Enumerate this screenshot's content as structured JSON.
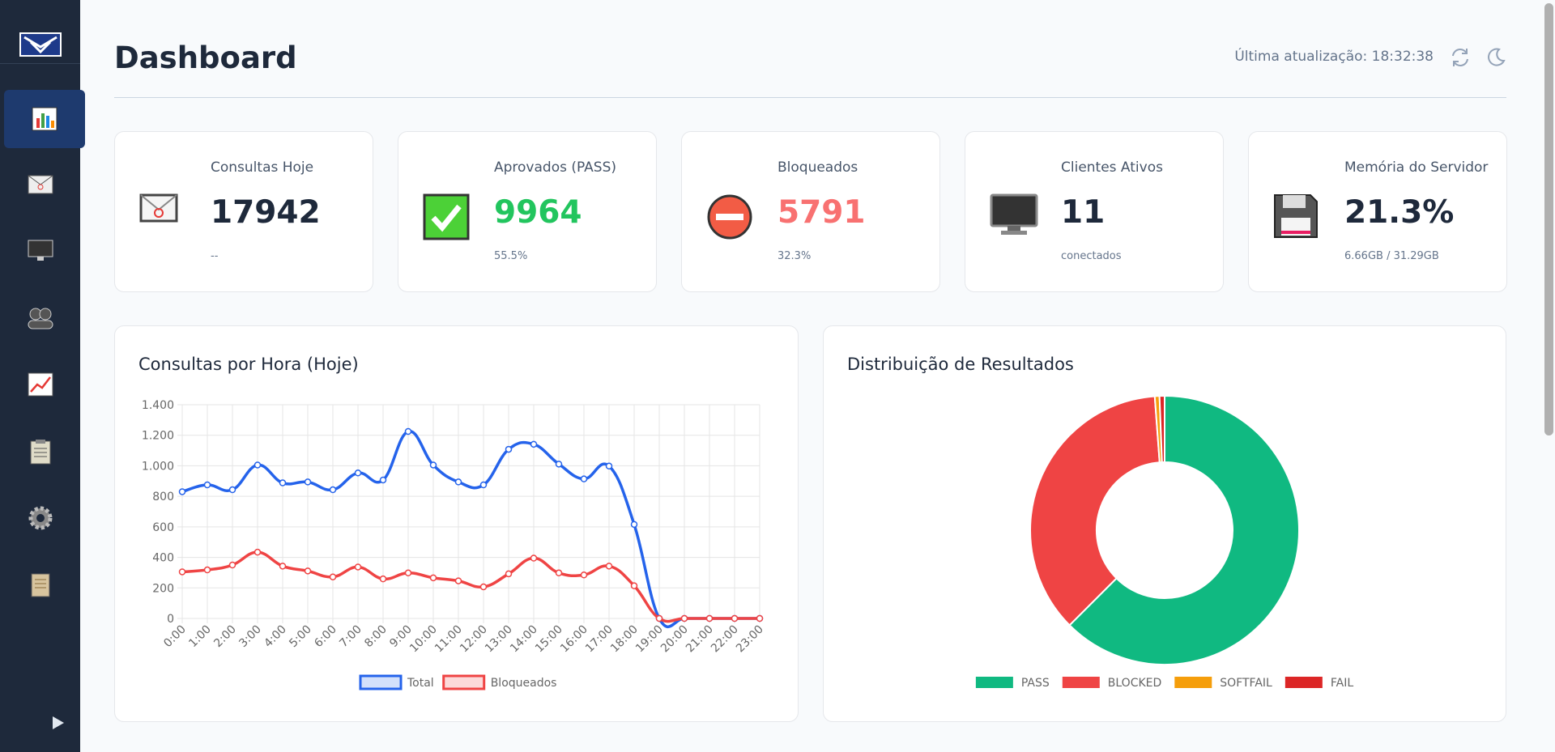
{
  "header": {
    "title": "Dashboard",
    "last_update": "Última atualização: 18:32:38"
  },
  "cards": [
    {
      "title": "Consultas Hoje",
      "value": 17942,
      "sub": "--"
    },
    {
      "title": "Aprovados (PASS)",
      "value": 9964,
      "sub": "55.5%"
    },
    {
      "title": "Bloqueados",
      "value": 5791,
      "sub": "32.3%"
    },
    {
      "title": "Clientes Ativos",
      "value": 11,
      "sub": "conectados"
    },
    {
      "title": "Memória do Servidor",
      "value": "21.3%",
      "sub": "6.66GB / 31.29GB"
    }
  ],
  "line_chart": {
    "type": "line",
    "title": "Consultas por Hora (Hoje)",
    "categories": [
      "0:00",
      "1:00",
      "2:00",
      "3:00",
      "4:00",
      "5:00",
      "6:00",
      "7:00",
      "8:00",
      "9:00",
      "10:00",
      "11:00",
      "12:00",
      "13:00",
      "14:00",
      "15:00",
      "16:00",
      "17:00",
      "18:00",
      "19:00",
      "20:00",
      "21:00",
      "22:00",
      "23:00"
    ],
    "series": [
      {
        "name": "Total",
        "color": "#2563eb",
        "values": [
          830,
          875,
          843,
          1005,
          888,
          894,
          843,
          953,
          907,
          1225,
          1005,
          894,
          875,
          1108,
          1141,
          1011,
          914,
          998,
          616,
          0,
          0,
          0,
          0,
          0
        ]
      },
      {
        "name": "Bloqueados",
        "color": "#ef4444",
        "values": [
          305,
          318,
          350,
          434,
          343,
          311,
          272,
          337,
          259,
          298,
          266,
          246,
          207,
          292,
          395,
          298,
          285,
          343,
          214,
          0,
          0,
          0,
          0,
          0
        ]
      }
    ],
    "ylim": [
      0,
      1400
    ],
    "yticks": [
      0,
      200,
      400,
      600,
      800,
      {
        "value": 1000,
        "label": "1.000"
      },
      {
        "value": 1200,
        "label": "1.200"
      },
      {
        "value": 1400,
        "label": "1.400"
      }
    ],
    "grid": true
  },
  "pie_chart": {
    "type": "doughnut",
    "title": "Distribuição de Resultados",
    "categories": [
      "PASS",
      "BLOCKED",
      "SOFTFAIL",
      "FAIL"
    ],
    "values": [
      9964,
      5791,
      90,
      97
    ],
    "colors": [
      "#10b981",
      "#ef4444",
      "#f59e0b",
      "#dc2626"
    ]
  }
}
